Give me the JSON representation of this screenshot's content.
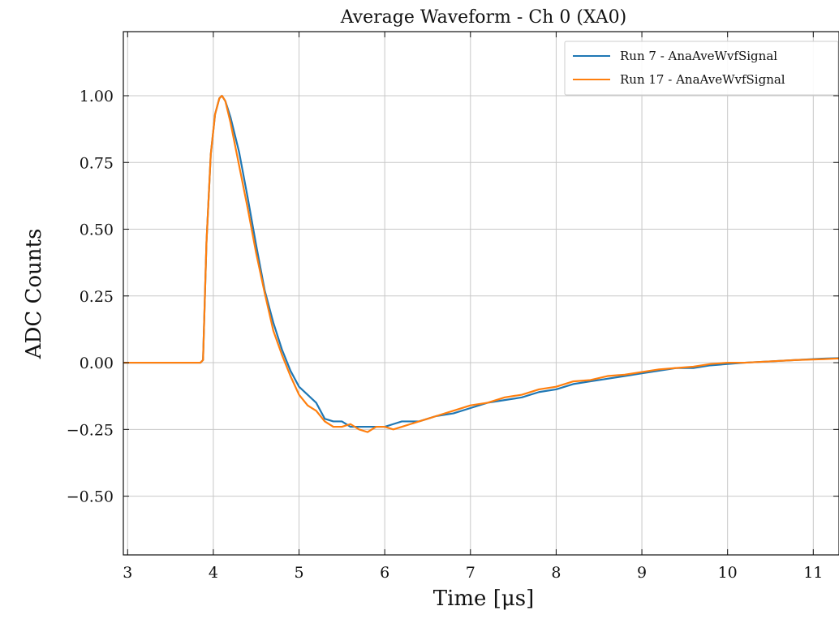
{
  "chart_data": {
    "type": "line",
    "title": "Average Waveform - Ch 0 (XA0)",
    "xlabel": "Time [μs]",
    "ylabel": "ADC Counts",
    "xlim": [
      2.95,
      11.3
    ],
    "ylim": [
      -0.72,
      1.24
    ],
    "xticks": [
      3,
      4,
      5,
      6,
      7,
      8,
      9,
      10,
      11
    ],
    "xtick_labels": [
      "3",
      "4",
      "5",
      "6",
      "7",
      "8",
      "9",
      "10",
      "11"
    ],
    "yticks": [
      -0.5,
      -0.25,
      0.0,
      0.25,
      0.5,
      0.75,
      1.0
    ],
    "ytick_labels": [
      "−0.50",
      "−0.25",
      "0.00",
      "0.25",
      "0.50",
      "0.75",
      "1.00"
    ],
    "grid": true,
    "legend_position": "top-right",
    "series": [
      {
        "name": "Run 7 - AnaAveWvfSignal",
        "color": "#1f77b4",
        "points": [
          [
            2.95,
            0.0
          ],
          [
            3.5,
            0.0
          ],
          [
            3.85,
            0.0
          ],
          [
            3.88,
            0.01
          ],
          [
            3.92,
            0.45
          ],
          [
            3.97,
            0.78
          ],
          [
            4.02,
            0.93
          ],
          [
            4.07,
            0.99
          ],
          [
            4.1,
            1.0
          ],
          [
            4.14,
            0.98
          ],
          [
            4.2,
            0.92
          ],
          [
            4.3,
            0.79
          ],
          [
            4.4,
            0.62
          ],
          [
            4.5,
            0.44
          ],
          [
            4.6,
            0.27
          ],
          [
            4.7,
            0.15
          ],
          [
            4.8,
            0.05
          ],
          [
            4.9,
            -0.03
          ],
          [
            5.0,
            -0.09
          ],
          [
            5.1,
            -0.12
          ],
          [
            5.2,
            -0.15
          ],
          [
            5.3,
            -0.21
          ],
          [
            5.4,
            -0.22
          ],
          [
            5.5,
            -0.22
          ],
          [
            5.6,
            -0.24
          ],
          [
            5.7,
            -0.24
          ],
          [
            5.8,
            -0.24
          ],
          [
            5.9,
            -0.24
          ],
          [
            6.0,
            -0.24
          ],
          [
            6.1,
            -0.23
          ],
          [
            6.2,
            -0.22
          ],
          [
            6.3,
            -0.22
          ],
          [
            6.4,
            -0.22
          ],
          [
            6.5,
            -0.21
          ],
          [
            6.6,
            -0.2
          ],
          [
            6.8,
            -0.19
          ],
          [
            7.0,
            -0.17
          ],
          [
            7.2,
            -0.15
          ],
          [
            7.4,
            -0.14
          ],
          [
            7.6,
            -0.13
          ],
          [
            7.8,
            -0.11
          ],
          [
            8.0,
            -0.1
          ],
          [
            8.2,
            -0.08
          ],
          [
            8.4,
            -0.07
          ],
          [
            8.6,
            -0.06
          ],
          [
            8.8,
            -0.05
          ],
          [
            9.0,
            -0.04
          ],
          [
            9.2,
            -0.03
          ],
          [
            9.4,
            -0.02
          ],
          [
            9.6,
            -0.02
          ],
          [
            9.8,
            -0.01
          ],
          [
            10.0,
            -0.005
          ],
          [
            10.2,
            0.0
          ],
          [
            10.5,
            0.005
          ],
          [
            10.8,
            0.01
          ],
          [
            11.1,
            0.015
          ],
          [
            11.3,
            0.017
          ]
        ]
      },
      {
        "name": "Run 17 - AnaAveWvfSignal",
        "color": "#ff7f0e",
        "points": [
          [
            2.95,
            0.0
          ],
          [
            3.5,
            0.0
          ],
          [
            3.85,
            0.0
          ],
          [
            3.88,
            0.01
          ],
          [
            3.92,
            0.45
          ],
          [
            3.97,
            0.78
          ],
          [
            4.02,
            0.93
          ],
          [
            4.07,
            0.99
          ],
          [
            4.1,
            1.0
          ],
          [
            4.14,
            0.98
          ],
          [
            4.2,
            0.9
          ],
          [
            4.3,
            0.74
          ],
          [
            4.4,
            0.58
          ],
          [
            4.5,
            0.41
          ],
          [
            4.6,
            0.26
          ],
          [
            4.7,
            0.12
          ],
          [
            4.8,
            0.03
          ],
          [
            4.9,
            -0.05
          ],
          [
            5.0,
            -0.12
          ],
          [
            5.1,
            -0.16
          ],
          [
            5.2,
            -0.18
          ],
          [
            5.3,
            -0.22
          ],
          [
            5.4,
            -0.24
          ],
          [
            5.5,
            -0.24
          ],
          [
            5.6,
            -0.23
          ],
          [
            5.7,
            -0.25
          ],
          [
            5.8,
            -0.26
          ],
          [
            5.9,
            -0.24
          ],
          [
            6.0,
            -0.24
          ],
          [
            6.1,
            -0.25
          ],
          [
            6.2,
            -0.24
          ],
          [
            6.3,
            -0.23
          ],
          [
            6.4,
            -0.22
          ],
          [
            6.5,
            -0.21
          ],
          [
            6.6,
            -0.2
          ],
          [
            6.8,
            -0.18
          ],
          [
            7.0,
            -0.16
          ],
          [
            7.2,
            -0.15
          ],
          [
            7.4,
            -0.13
          ],
          [
            7.6,
            -0.12
          ],
          [
            7.8,
            -0.1
          ],
          [
            8.0,
            -0.09
          ],
          [
            8.2,
            -0.07
          ],
          [
            8.4,
            -0.065
          ],
          [
            8.6,
            -0.05
          ],
          [
            8.8,
            -0.045
          ],
          [
            9.0,
            -0.035
          ],
          [
            9.2,
            -0.025
          ],
          [
            9.4,
            -0.02
          ],
          [
            9.6,
            -0.015
          ],
          [
            9.8,
            -0.005
          ],
          [
            10.0,
            0.0
          ],
          [
            10.2,
            0.0
          ],
          [
            10.5,
            0.005
          ],
          [
            10.8,
            0.01
          ],
          [
            11.1,
            0.013
          ],
          [
            11.3,
            0.016
          ]
        ]
      }
    ]
  }
}
